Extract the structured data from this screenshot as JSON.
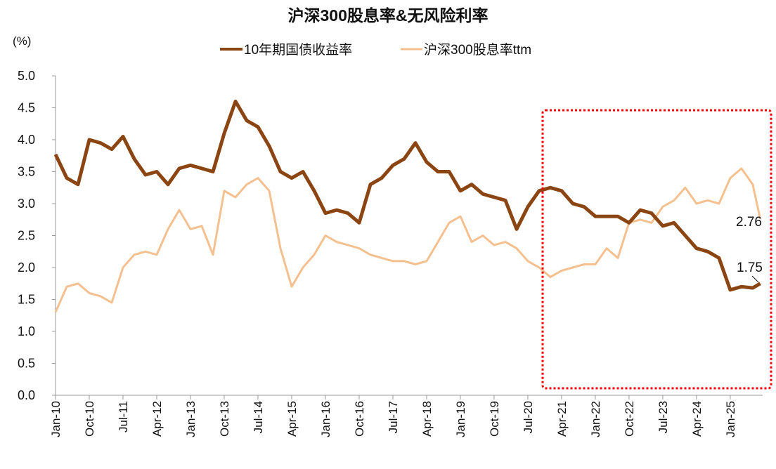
{
  "chart_data": {
    "type": "line",
    "title": "沪深300股息率&无风险利率",
    "ylabel": "(%)",
    "xlabel": "",
    "ylim": [
      0,
      5
    ],
    "yticks": [
      "0.0",
      "0.5",
      "1.0",
      "1.5",
      "2.0",
      "2.5",
      "3.0",
      "3.5",
      "4.0",
      "4.5",
      "5.0"
    ],
    "xtick_labels": [
      "Jan-10",
      "Oct-10",
      "Jul-11",
      "Apr-12",
      "Jan-13",
      "Oct-13",
      "Jul-14",
      "Apr-15",
      "Jan-16",
      "Oct-16",
      "Jul-17",
      "Apr-18",
      "Jan-19",
      "Oct-19",
      "Jul-20",
      "Apr-21",
      "Jan-22",
      "Oct-22",
      "Jul-23",
      "Apr-24",
      "Jan-25"
    ],
    "x_months_since_jan10_step": 3,
    "legend_position": "top-center",
    "grid": false,
    "series": [
      {
        "name": "10年期国债收益率",
        "color": "#8B4513",
        "values": [
          3.77,
          3.4,
          3.3,
          4.0,
          3.95,
          3.85,
          4.05,
          3.7,
          3.45,
          3.5,
          3.3,
          3.55,
          3.6,
          3.55,
          3.5,
          4.1,
          4.6,
          4.3,
          4.2,
          3.9,
          3.5,
          3.4,
          3.5,
          3.2,
          2.85,
          2.9,
          2.85,
          2.7,
          3.3,
          3.4,
          3.6,
          3.7,
          3.95,
          3.65,
          3.5,
          3.5,
          3.2,
          3.3,
          3.15,
          3.1,
          3.05,
          2.6,
          2.95,
          3.2,
          3.25,
          3.2,
          3.0,
          2.95,
          2.8,
          2.8,
          2.8,
          2.7,
          2.9,
          2.85,
          2.65,
          2.7,
          2.5,
          2.3,
          2.25,
          2.15,
          1.65,
          1.7,
          1.68,
          1.75
        ],
        "end_label": "1.75"
      },
      {
        "name": "沪深300股息率ttm",
        "color": "#F5C08F",
        "values": [
          1.3,
          1.7,
          1.75,
          1.6,
          1.55,
          1.45,
          2.0,
          2.2,
          2.25,
          2.2,
          2.6,
          2.9,
          2.6,
          2.65,
          2.2,
          3.2,
          3.1,
          3.3,
          3.4,
          3.2,
          2.3,
          1.7,
          2.0,
          2.2,
          2.5,
          2.4,
          2.35,
          2.3,
          2.2,
          2.15,
          2.1,
          2.1,
          2.05,
          2.1,
          2.4,
          2.7,
          2.8,
          2.4,
          2.5,
          2.35,
          2.4,
          2.3,
          2.1,
          2.0,
          1.85,
          1.95,
          2.0,
          2.05,
          2.05,
          2.3,
          2.15,
          2.7,
          2.75,
          2.7,
          2.95,
          3.05,
          3.25,
          3.0,
          3.05,
          3.0,
          3.4,
          3.55,
          3.3,
          2.76
        ],
        "end_label": "2.76"
      }
    ],
    "annotations": [
      "highlight box: Oct-20 to Sep-25"
    ]
  }
}
